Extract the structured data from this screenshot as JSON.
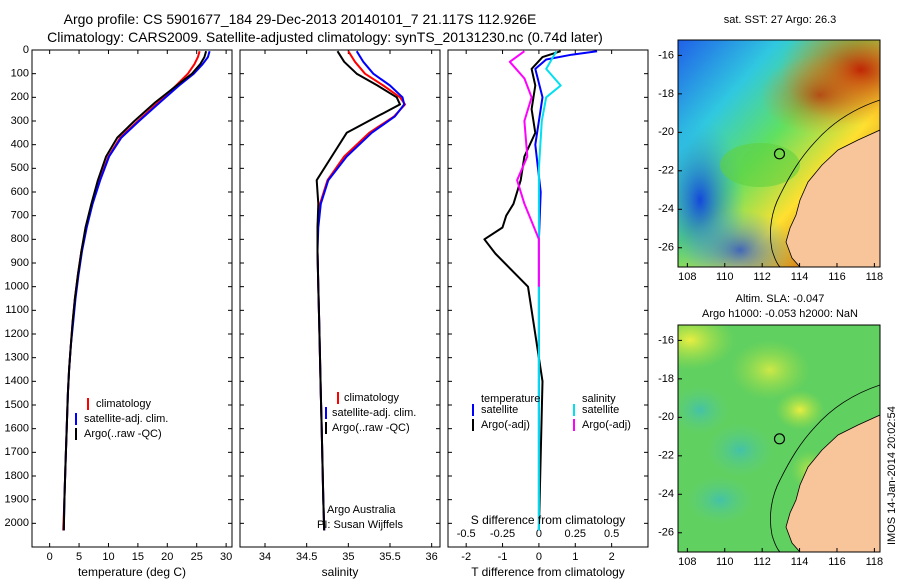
{
  "header": {
    "line1": "Argo profile: CS 5901677_184 29-Dec-2013 20140101_7 21.117S 112.926E",
    "line2": "Climatology: CARS2009. Satellite-adjusted climatology: synTS_20131230.nc (0.74d later)"
  },
  "colors": {
    "climatology": "#ff0000",
    "satellite": "#0000ff",
    "argo": "#000000",
    "sal_satellite": "#00e0f0",
    "sal_argo": "#ff00ff",
    "land": "#f8c49a"
  },
  "chart_data": [
    {
      "id": "temperature",
      "type": "line",
      "xlabel": "temperature (deg C)",
      "ylabel": "",
      "xlim": [
        -3,
        31
      ],
      "ylim": [
        2100,
        0
      ],
      "xticks": [
        "0",
        "5",
        "10",
        "15",
        "20",
        "25",
        "30"
      ],
      "yticks": [
        "0",
        "100",
        "200",
        "300",
        "400",
        "500",
        "600",
        "700",
        "800",
        "900",
        "1000",
        "1100",
        "1200",
        "1300",
        "1400",
        "1500",
        "1600",
        "1700",
        "1800",
        "1900",
        "2000"
      ],
      "legend": [
        "climatology",
        "satellite-adj. clim.",
        "Argo(..raw -QC)"
      ],
      "series": [
        {
          "name": "climatology",
          "color": "#ff0000",
          "x": [
            25.5,
            25.2,
            24.6,
            23.5,
            21.5,
            18.5,
            15,
            12,
            10,
            8.5,
            7.2,
            6.2,
            5.4,
            4.8,
            4.3,
            3.9,
            3.6,
            3.3,
            3.1,
            2.9,
            2.7,
            2.5,
            2.3
          ],
          "y": [
            5,
            30,
            60,
            100,
            150,
            220,
            300,
            370,
            450,
            550,
            650,
            750,
            850,
            950,
            1050,
            1150,
            1250,
            1350,
            1450,
            1600,
            1750,
            1900,
            2030
          ]
        },
        {
          "name": "satellite-adj. clim.",
          "color": "#0000ff",
          "x": [
            27.2,
            26.9,
            26.0,
            24.5,
            22.0,
            18.8,
            15.2,
            12.2,
            10.1,
            8.6,
            7.3,
            6.3,
            5.5,
            4.9,
            4.4,
            4.0,
            3.6,
            3.3,
            3.1,
            2.9,
            2.7,
            2.5,
            2.4
          ],
          "y": [
            5,
            30,
            60,
            100,
            150,
            220,
            300,
            370,
            450,
            550,
            650,
            750,
            850,
            950,
            1050,
            1150,
            1250,
            1350,
            1450,
            1600,
            1750,
            1900,
            2030
          ]
        },
        {
          "name": "Argo(..raw -QC)",
          "color": "#000000",
          "x": [
            26.6,
            26.3,
            25.6,
            24.2,
            21.6,
            18.0,
            14.4,
            11.5,
            9.6,
            8.2,
            7.1,
            6.1,
            5.4,
            4.8,
            4.3,
            3.9,
            3.6,
            3.3,
            3.1,
            2.9,
            2.7,
            2.5,
            2.4
          ],
          "y": [
            5,
            30,
            60,
            100,
            150,
            220,
            300,
            370,
            450,
            550,
            650,
            750,
            850,
            950,
            1050,
            1150,
            1250,
            1350,
            1450,
            1600,
            1750,
            1900,
            2030
          ]
        }
      ]
    },
    {
      "id": "salinity",
      "type": "line",
      "xlabel": "salinity",
      "ylabel": "",
      "xlim": [
        33.7,
        36.1
      ],
      "ylim": [
        2100,
        0
      ],
      "xticks": [
        "34",
        "34.5",
        "35",
        "35.5",
        "36"
      ],
      "legend": [
        "climatology",
        "satellite-adj. clim.",
        "Argo(..raw -QC)"
      ],
      "annotation": [
        "Argo Australia",
        "PI: Susan Wijffels"
      ],
      "series": [
        {
          "name": "climatology",
          "color": "#ff0000",
          "x": [
            35.0,
            35.08,
            35.2,
            35.42,
            35.62,
            35.68,
            35.55,
            35.25,
            34.95,
            34.75,
            34.66,
            34.63,
            34.63,
            34.64,
            34.65,
            34.66,
            34.67,
            34.68,
            34.69,
            34.7,
            34.71
          ],
          "y": [
            5,
            50,
            100,
            150,
            200,
            230,
            280,
            350,
            450,
            550,
            650,
            750,
            850,
            1000,
            1150,
            1300,
            1450,
            1600,
            1750,
            1900,
            2030
          ]
        },
        {
          "name": "satellite-adj. clim.",
          "color": "#0000ff",
          "x": [
            35.1,
            35.18,
            35.3,
            35.5,
            35.65,
            35.67,
            35.56,
            35.28,
            34.98,
            34.76,
            34.67,
            34.64,
            34.63,
            34.64,
            34.65,
            34.66,
            34.67,
            34.68,
            34.69,
            34.7,
            34.71
          ],
          "y": [
            5,
            50,
            100,
            150,
            200,
            230,
            280,
            350,
            450,
            550,
            650,
            750,
            850,
            1000,
            1150,
            1300,
            1450,
            1600,
            1750,
            1900,
            2030
          ]
        },
        {
          "name": "Argo(..raw -QC)",
          "color": "#000000",
          "x": [
            34.87,
            34.95,
            35.1,
            35.35,
            35.58,
            35.62,
            35.35,
            34.98,
            34.8,
            34.62,
            34.64,
            34.63,
            34.63,
            34.64,
            34.65,
            34.66,
            34.67,
            34.68,
            34.69,
            34.7,
            34.71
          ],
          "y": [
            5,
            50,
            100,
            150,
            200,
            230,
            280,
            350,
            450,
            550,
            650,
            750,
            850,
            1000,
            1150,
            1300,
            1450,
            1600,
            1750,
            1900,
            2030
          ]
        }
      ]
    },
    {
      "id": "difference",
      "type": "line",
      "xlabel": "T difference from climatology",
      "xlabel2": "S difference from climatology",
      "xlim": [
        -2.5,
        3
      ],
      "ylim": [
        2100,
        0
      ],
      "xticks": [
        "-2",
        "-1",
        "0",
        "1",
        "2"
      ],
      "sticks": [
        "-0.5",
        "-0.25",
        "0",
        "0.25",
        "0.5"
      ],
      "legend_titles": [
        "temperature",
        "salinity"
      ],
      "legend": [
        "satellite",
        "Argo(-adj)",
        "satellite",
        "Argo(-adj)"
      ],
      "series": [
        {
          "name": "satellite",
          "group": "temperature",
          "color": "#0000ff",
          "x": [
            1.6,
            0.9,
            0.2,
            -0.1,
            0.1,
            -0.1,
            0.05,
            0.0,
            0.0,
            0.0,
            0.0
          ],
          "y": [
            5,
            20,
            40,
            80,
            200,
            400,
            600,
            800,
            1200,
            1600,
            2030
          ]
        },
        {
          "name": "Argo(-adj)",
          "group": "temperature",
          "color": "#000000",
          "x": [
            0.6,
            0.1,
            -0.2,
            -0.1,
            -0.2,
            -0.1,
            -0.4,
            -0.5,
            -0.7,
            -0.9,
            -1.0,
            -1.5,
            -1.2,
            -0.3,
            0.1,
            0.0
          ],
          "y": [
            5,
            30,
            80,
            150,
            250,
            350,
            450,
            550,
            650,
            700,
            750,
            800,
            860,
            1000,
            1400,
            2030
          ]
        },
        {
          "name": "satellite",
          "group": "salinity",
          "color": "#00e0f0",
          "x": [
            0.12,
            0.05,
            0.15,
            0.05,
            0.02,
            0.0,
            0.0,
            0.0,
            0.0
          ],
          "y": [
            5,
            80,
            150,
            200,
            300,
            500,
            800,
            1200,
            2030
          ]
        },
        {
          "name": "Argo(-adj)",
          "group": "salinity",
          "color": "#ff00ff",
          "x": [
            -0.1,
            -0.2,
            -0.1,
            -0.05,
            -0.1,
            -0.08,
            -0.15,
            -0.1,
            0.0,
            0.0
          ],
          "y": [
            5,
            50,
            120,
            200,
            300,
            450,
            550,
            650,
            800,
            1000
          ]
        }
      ]
    }
  ],
  "maps": [
    {
      "id": "sst",
      "title": "sat. SST: 27 Argo: 26.3",
      "xlim": [
        107.5,
        118.3
      ],
      "ylim": [
        -27,
        -15.2
      ],
      "xticks": [
        "108",
        "110",
        "112",
        "114",
        "116",
        "118"
      ],
      "yticks": [
        "-16",
        "-18",
        "-20",
        "-22",
        "-24",
        "-26"
      ],
      "marker": {
        "lon": 112.926,
        "lat": -21.117
      }
    },
    {
      "id": "sla",
      "title": "Altim. SLA: -0.047",
      "subtitle": "Argo h1000: -0.053 h2000: NaN",
      "xlim": [
        107.5,
        118.3
      ],
      "ylim": [
        -27,
        -15.2
      ],
      "xticks": [
        "108",
        "110",
        "112",
        "114",
        "116",
        "118"
      ],
      "yticks": [
        "-16",
        "-18",
        "-20",
        "-22",
        "-24",
        "-26"
      ],
      "marker": {
        "lon": 112.926,
        "lat": -21.117
      }
    }
  ],
  "footer": {
    "stamp": "IMOS 14-Jan-2014 20:02:54"
  }
}
